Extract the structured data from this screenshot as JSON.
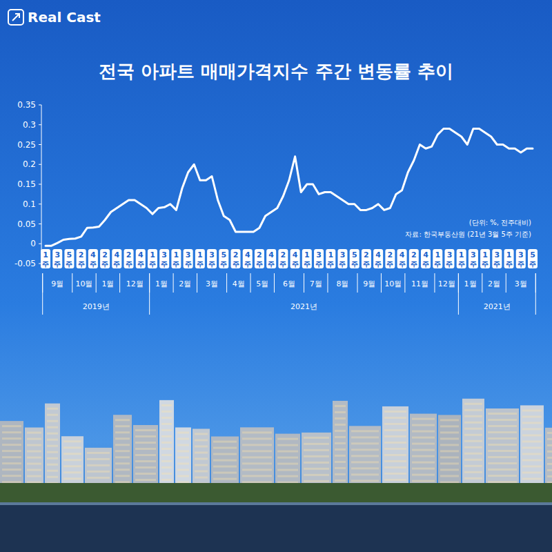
{
  "chart_data": {
    "type": "line",
    "brand": "Real Cast",
    "title": "전국 아파트 매매가격지수 주간 변동률 추이",
    "unit_note": "(단위: %, 전주대비)",
    "source": "자료: 한국부동산원 (21년 3월 5주 기준)",
    "categories": [
      "1주",
      null,
      "3주",
      null,
      "5주",
      null,
      "2주",
      null,
      "4주",
      null,
      "2주",
      null,
      "4주",
      null,
      "2주",
      null,
      "4주",
      null,
      "1주",
      null,
      "3주",
      null,
      "1주",
      null,
      "3주",
      null,
      "1주",
      null,
      "3주",
      null,
      "5주",
      null,
      "2주",
      null,
      "4주",
      null,
      "2주",
      null,
      "4주",
      null,
      "2주",
      null,
      "4주",
      null,
      "1주",
      null,
      "3주",
      null,
      "1주",
      null,
      "3주",
      null,
      "5주",
      null,
      "2주",
      null,
      "4주",
      null,
      "2주",
      null,
      "4주",
      null,
      "2주",
      null,
      "4주",
      null,
      "1주",
      null,
      "3주",
      null,
      "1주",
      null,
      "3주",
      null,
      "1주",
      null,
      "3주",
      null,
      "1주",
      null,
      "3주",
      null,
      "5주"
    ],
    "values": [
      -0.005,
      -0.005,
      0.002,
      0.01,
      0.012,
      0.013,
      0.018,
      0.04,
      0.041,
      0.043,
      0.06,
      0.08,
      0.09,
      0.1,
      0.11,
      0.11,
      0.1,
      0.09,
      0.075,
      0.09,
      0.092,
      0.1,
      0.085,
      0.14,
      0.18,
      0.2,
      0.16,
      0.16,
      0.17,
      0.11,
      0.07,
      0.06,
      0.03,
      0.03,
      0.03,
      0.03,
      0.04,
      0.07,
      0.08,
      0.09,
      0.12,
      0.16,
      0.22,
      0.13,
      0.15,
      0.15,
      0.125,
      0.13,
      0.13,
      0.12,
      0.11,
      0.1,
      0.1,
      0.085,
      0.085,
      0.09,
      0.1,
      0.085,
      0.09,
      0.125,
      0.135,
      0.18,
      0.21,
      0.25,
      0.24,
      0.245,
      0.275,
      0.29,
      0.29,
      0.28,
      0.27,
      0.25,
      0.29,
      0.29,
      0.28,
      0.27,
      0.25,
      0.25,
      0.24,
      0.24,
      0.23,
      0.24,
      0.24
    ],
    "color": "#ffffff",
    "month_groups": [
      {
        "label": "9월",
        "span": 5
      },
      {
        "label": "10월",
        "span": 4
      },
      {
        "label": "1월",
        "span": 4
      },
      {
        "label": "12월",
        "span": 5
      },
      {
        "label": "1월",
        "span": 4
      },
      {
        "label": "2월",
        "span": 4
      },
      {
        "label": "3월",
        "span": 5
      },
      {
        "label": "4월",
        "span": 4
      },
      {
        "label": "5월",
        "span": 4
      },
      {
        "label": "6월",
        "span": 5
      },
      {
        "label": "7월",
        "span": 4
      },
      {
        "label": "8월",
        "span": 5
      },
      {
        "label": "9월",
        "span": 4
      },
      {
        "label": "10월",
        "span": 4
      },
      {
        "label": "11월",
        "span": 5
      },
      {
        "label": "12월",
        "span": 4
      },
      {
        "label": "1월",
        "span": 4
      },
      {
        "label": "2월",
        "span": 4
      },
      {
        "label": "3월",
        "span": 5
      }
    ],
    "year_groups": [
      {
        "label": "2019년",
        "span": 18
      },
      {
        "label": "2021년",
        "span": 52
      },
      {
        "label": "2021년",
        "span": 13
      }
    ],
    "ylim": [
      -0.05,
      0.35
    ],
    "yticks": [
      -0.05,
      0,
      0.05,
      0.1,
      0.15,
      0.2,
      0.25,
      0.3,
      0.35
    ],
    "grid": false
  }
}
